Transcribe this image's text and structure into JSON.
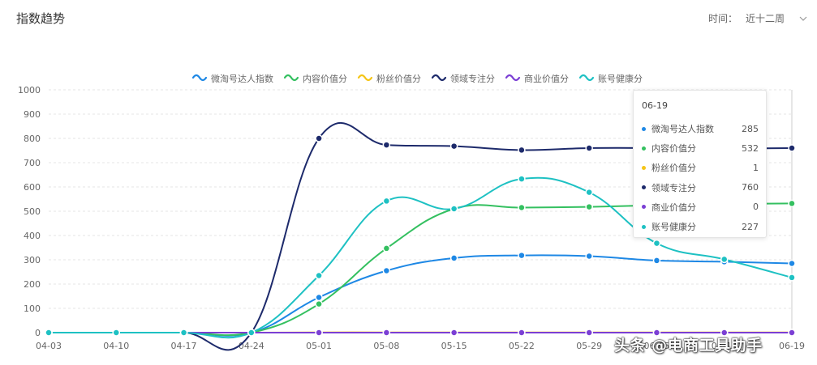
{
  "header": {
    "title": "指数趋势"
  },
  "filter": {
    "label": "时间：",
    "value": "近十二周"
  },
  "chart_data": {
    "type": "line",
    "categories": [
      "04-03",
      "04-10",
      "04-17",
      "04-24",
      "05-01",
      "05-08",
      "05-15",
      "05-22",
      "05-29",
      "06-05",
      "06-12",
      "06-19"
    ],
    "ylim": [
      0,
      1000
    ],
    "yticks": [
      0,
      100,
      200,
      300,
      400,
      500,
      600,
      700,
      800,
      900,
      1000
    ],
    "grid": true,
    "legend_position": "top-center",
    "series": [
      {
        "name": "微淘号达人指数",
        "color": "#1e88e5",
        "values": [
          0,
          0,
          0,
          0,
          145,
          255,
          307,
          318,
          315,
          297,
          292,
          285
        ]
      },
      {
        "name": "内容价值分",
        "color": "#34c060",
        "values": [
          0,
          0,
          0,
          0,
          118,
          347,
          510,
          515,
          518,
          525,
          530,
          532
        ]
      },
      {
        "name": "粉丝价值分",
        "color": "#f5c518",
        "values": [
          0,
          0,
          0,
          0,
          1,
          1,
          1,
          1,
          1,
          1,
          1,
          1
        ]
      },
      {
        "name": "领域专注分",
        "color": "#1d2a6b",
        "values": [
          0,
          0,
          0,
          0,
          800,
          773,
          768,
          752,
          760,
          760,
          758,
          760
        ]
      },
      {
        "name": "商业价值分",
        "color": "#7b3fd4",
        "values": [
          0,
          0,
          0,
          0,
          0,
          0,
          0,
          0,
          0,
          0,
          0,
          0
        ]
      },
      {
        "name": "账号健康分",
        "color": "#1ec1c3",
        "values": [
          0,
          0,
          0,
          0,
          235,
          542,
          510,
          633,
          578,
          368,
          302,
          227
        ]
      }
    ]
  },
  "tooltip": {
    "date": "06-19",
    "rows": [
      {
        "name": "微淘号达人指数",
        "value": "285",
        "color": "#1e88e5"
      },
      {
        "name": "内容价值分",
        "value": "532",
        "color": "#34c060"
      },
      {
        "name": "粉丝价值分",
        "value": "1",
        "color": "#f5c518"
      },
      {
        "name": "领域专注分",
        "value": "760",
        "color": "#1d2a6b"
      },
      {
        "name": "商业价值分",
        "value": "0",
        "color": "#7b3fd4"
      },
      {
        "name": "账号健康分",
        "value": "227",
        "color": "#1ec1c3"
      }
    ]
  },
  "watermark": "头条 @电商工具助手"
}
